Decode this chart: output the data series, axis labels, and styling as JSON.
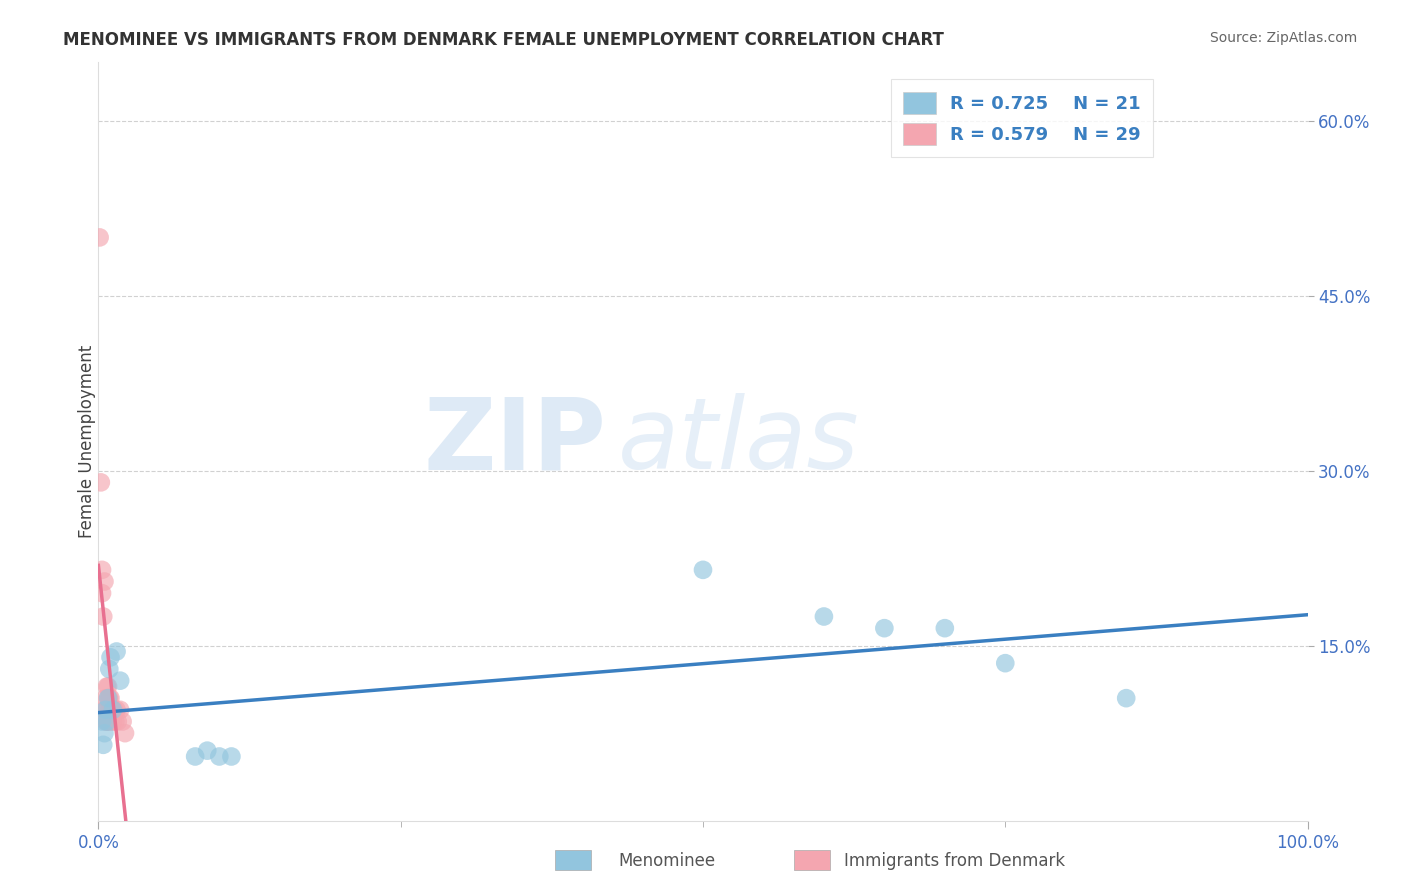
{
  "title": "MENOMINEE VS IMMIGRANTS FROM DENMARK FEMALE UNEMPLOYMENT CORRELATION CHART",
  "source": "Source: ZipAtlas.com",
  "ylabel_label": "Female Unemployment",
  "legend_label1": "Menominee",
  "legend_label2": "Immigrants from Denmark",
  "R1": 0.725,
  "N1": 21,
  "R2": 0.579,
  "N2": 29,
  "blue_color": "#92C5DE",
  "pink_color": "#F4A6B0",
  "blue_line_color": "#3A7FC1",
  "pink_line_color": "#E87090",
  "pink_dash_color": "#E8A0B0",
  "menominee_x": [
    0.003,
    0.004,
    0.005,
    0.006,
    0.007,
    0.008,
    0.009,
    0.01,
    0.012,
    0.015,
    0.018,
    0.08,
    0.09,
    0.1,
    0.11,
    0.5,
    0.6,
    0.65,
    0.7,
    0.75,
    0.85
  ],
  "menominee_y": [
    0.085,
    0.065,
    0.075,
    0.095,
    0.085,
    0.105,
    0.13,
    0.14,
    0.095,
    0.145,
    0.12,
    0.055,
    0.06,
    0.055,
    0.055,
    0.215,
    0.175,
    0.165,
    0.165,
    0.135,
    0.105
  ],
  "denmark_x": [
    0.001,
    0.002,
    0.003,
    0.003,
    0.004,
    0.005,
    0.005,
    0.006,
    0.006,
    0.007,
    0.007,
    0.007,
    0.008,
    0.008,
    0.008,
    0.009,
    0.009,
    0.01,
    0.01,
    0.01,
    0.011,
    0.012,
    0.013,
    0.014,
    0.015,
    0.016,
    0.018,
    0.02,
    0.022
  ],
  "denmark_y": [
    0.5,
    0.29,
    0.195,
    0.215,
    0.175,
    0.095,
    0.205,
    0.105,
    0.085,
    0.115,
    0.095,
    0.085,
    0.085,
    0.105,
    0.115,
    0.095,
    0.105,
    0.085,
    0.095,
    0.105,
    0.095,
    0.085,
    0.095,
    0.085,
    0.095,
    0.085,
    0.095,
    0.085,
    0.075
  ],
  "background_color": "#FFFFFF",
  "watermark_zip": "ZIP",
  "watermark_atlas": "atlas",
  "xlim": [
    0,
    1.0
  ],
  "ylim": [
    0,
    0.65
  ],
  "ytick_vals": [
    0.15,
    0.3,
    0.45,
    0.6
  ],
  "ytick_labels": [
    "15.0%",
    "30.0%",
    "45.0%",
    "60.0%"
  ],
  "xtick_vals": [
    0.0,
    1.0
  ],
  "xtick_labels": [
    "0.0%",
    "100.0%"
  ]
}
